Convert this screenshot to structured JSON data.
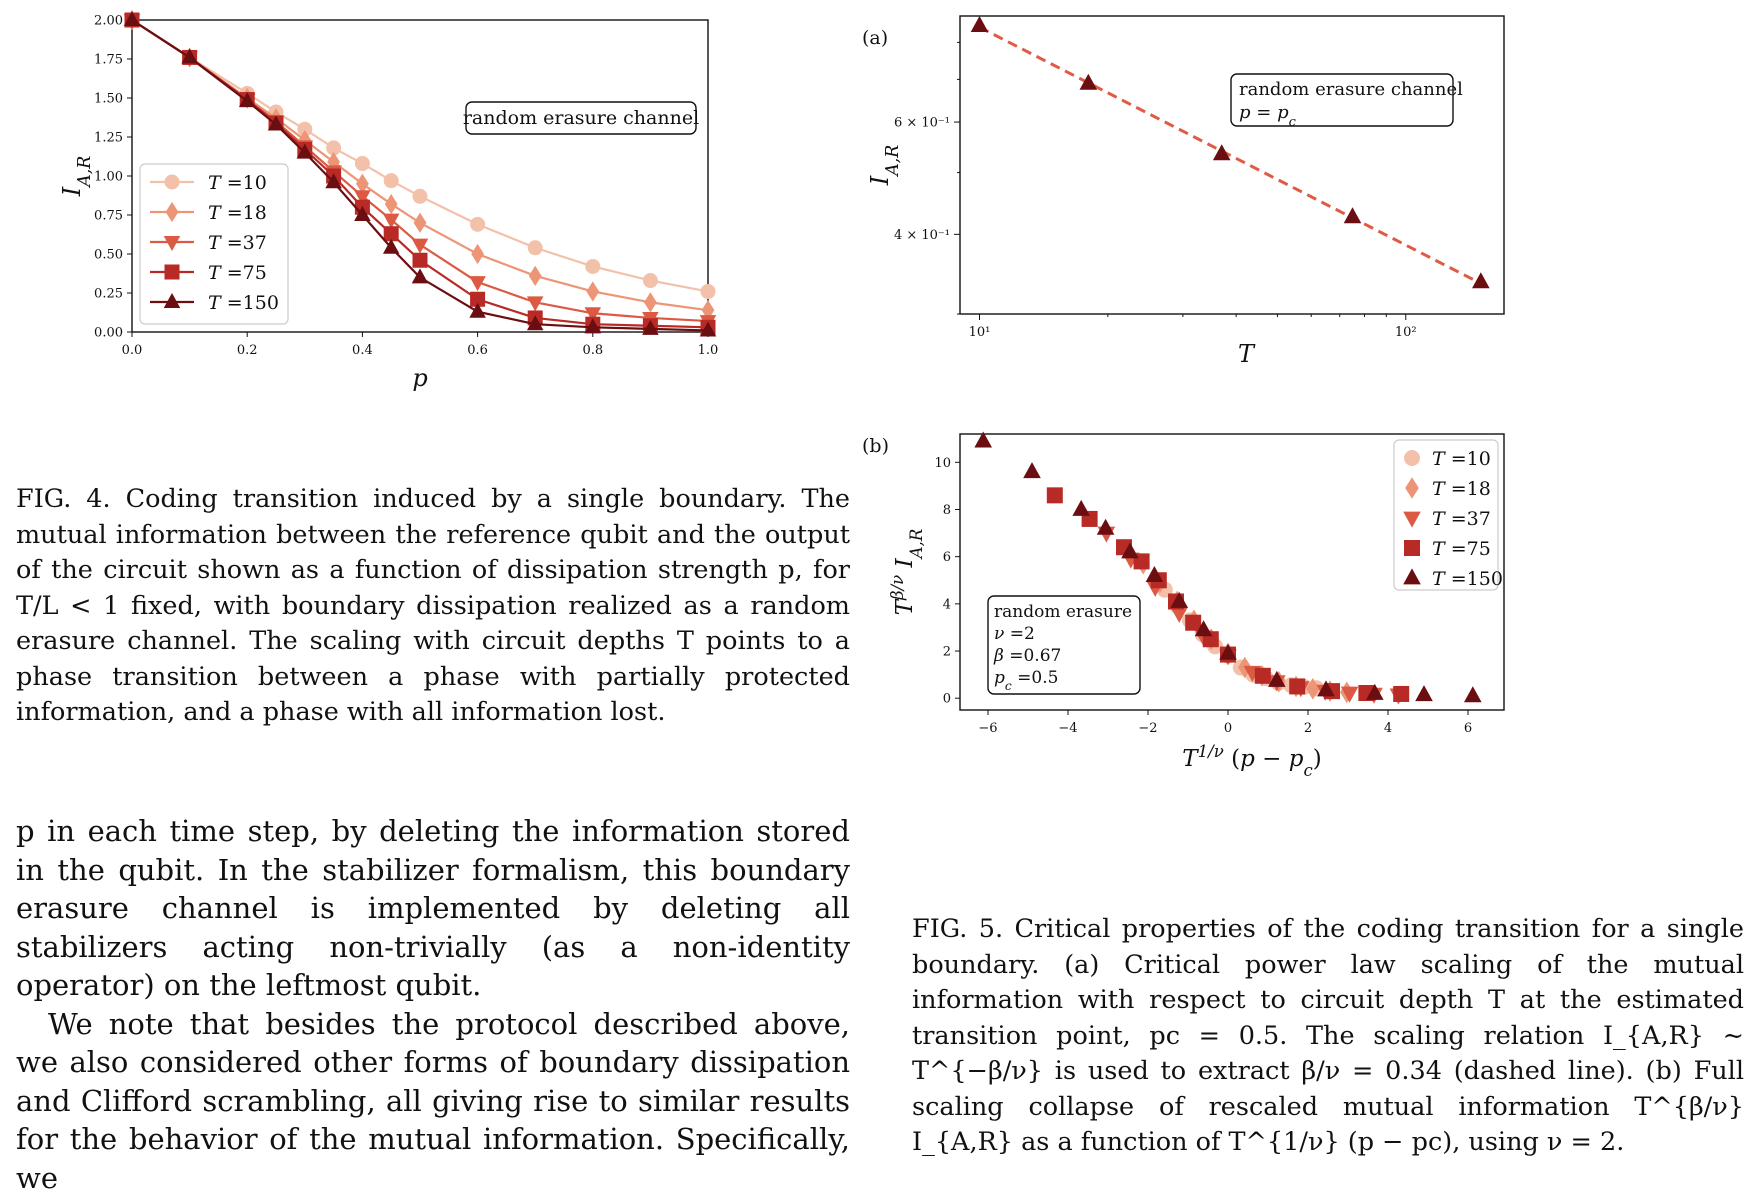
{
  "fig4": {
    "chart_data": {
      "type": "line",
      "xlabel": "p",
      "ylabel": "I_{A,R}",
      "xlim": [
        0.0,
        1.0
      ],
      "ylim": [
        0.0,
        2.0
      ],
      "xticks": [
        "0.0",
        "0.2",
        "0.4",
        "0.6",
        "0.8",
        "1.0"
      ],
      "yticks": [
        "0.00",
        "0.25",
        "0.50",
        "0.75",
        "1.00",
        "1.25",
        "1.50",
        "1.75",
        "2.00"
      ],
      "annotation": "random erasure channel",
      "legend_position": "middle-left",
      "x": [
        0.0,
        0.1,
        0.2,
        0.25,
        0.3,
        0.35,
        0.4,
        0.45,
        0.5,
        0.6,
        0.7,
        0.8,
        0.9,
        1.0
      ],
      "series": [
        {
          "name": "T =10",
          "marker": "circle",
          "color": "#f3c1aa",
          "values": [
            2.0,
            1.76,
            1.53,
            1.41,
            1.3,
            1.18,
            1.08,
            0.97,
            0.87,
            0.69,
            0.54,
            0.42,
            0.33,
            0.26
          ]
        },
        {
          "name": "T =18",
          "marker": "diamond",
          "color": "#ec9577",
          "values": [
            2.0,
            1.76,
            1.5,
            1.37,
            1.23,
            1.09,
            0.95,
            0.82,
            0.7,
            0.5,
            0.36,
            0.26,
            0.19,
            0.14
          ]
        },
        {
          "name": "T =37",
          "marker": "triangle-down",
          "color": "#dc5a44",
          "values": [
            2.0,
            1.76,
            1.49,
            1.35,
            1.19,
            1.03,
            0.87,
            0.72,
            0.56,
            0.32,
            0.19,
            0.12,
            0.09,
            0.07
          ]
        },
        {
          "name": "T =75",
          "marker": "square",
          "color": "#b82a26",
          "values": [
            2.0,
            1.76,
            1.49,
            1.34,
            1.17,
            1.0,
            0.8,
            0.63,
            0.46,
            0.21,
            0.09,
            0.05,
            0.04,
            0.03
          ]
        },
        {
          "name": "T =150",
          "marker": "triangle-up",
          "color": "#6b0e12",
          "values": [
            2.0,
            1.76,
            1.48,
            1.33,
            1.15,
            0.96,
            0.75,
            0.54,
            0.35,
            0.13,
            0.05,
            0.03,
            0.02,
            0.01
          ]
        }
      ]
    }
  },
  "fig5a": {
    "panel_label": "(a)",
    "chart_data": {
      "type": "scatter",
      "scale": "log-log",
      "xlabel": "T",
      "ylabel": "I_{A,R}",
      "xlim": [
        9,
        170
      ],
      "ylim": [
        0.3,
        0.88
      ],
      "xticks": [
        {
          "value": 10,
          "label": "10¹"
        },
        {
          "value": 100,
          "label": "10²"
        }
      ],
      "yticks": [
        {
          "value": 0.4,
          "label": "4 × 10⁻¹"
        },
        {
          "value": 0.6,
          "label": "6 × 10⁻¹"
        }
      ],
      "annotation": [
        "random erasure channel",
        "p = pc"
      ],
      "points": [
        [
          10,
          0.85
        ],
        [
          18,
          0.69
        ],
        [
          37,
          0.535
        ],
        [
          75,
          0.426
        ],
        [
          150,
          0.337
        ]
      ],
      "fit_line": {
        "style": "dashed",
        "color": "#e05a44",
        "from": [
          10,
          0.845
        ],
        "to": [
          150,
          0.335
        ]
      },
      "marker": "triangle-up",
      "color": "#6b0e12"
    }
  },
  "fig5b": {
    "panel_label": "(b)",
    "chart_data": {
      "type": "scatter",
      "xlabel": "T^{1/ν} (p − pc)",
      "ylabel": "T^{β/ν} I_{A,R}",
      "xlim": [
        -6.7,
        6.9
      ],
      "ylim": [
        -0.5,
        11.2
      ],
      "xticks": [
        "−6",
        "−4",
        "−2",
        "0",
        "2",
        "4",
        "6"
      ],
      "yticks": [
        "0",
        "2",
        "4",
        "6",
        "8",
        "10"
      ],
      "annotation": [
        "random erasure",
        "ν =2",
        "β =0.67",
        "pc =0.5"
      ],
      "legend_position": "top-right",
      "series": [
        {
          "name": "T =10",
          "marker": "circle",
          "color": "#f3c1aa",
          "points": [
            [
              -1.58,
              4.6
            ],
            [
              -1.26,
              3.9
            ],
            [
              -0.95,
              3.3
            ],
            [
              -0.63,
              2.7
            ],
            [
              -0.32,
              2.2
            ],
            [
              0,
              1.8
            ],
            [
              0.32,
              1.3
            ],
            [
              0.63,
              1.0
            ],
            [
              0.95,
              0.85
            ],
            [
              1.26,
              0.65
            ],
            [
              1.58,
              0.55
            ],
            [
              1.9,
              0.48
            ],
            [
              2.21,
              0.42
            ]
          ]
        },
        {
          "name": "T =18",
          "marker": "diamond",
          "color": "#ec9577",
          "points": [
            [
              -2.12,
              5.7
            ],
            [
              -1.7,
              4.9
            ],
            [
              -1.27,
              4.1
            ],
            [
              -0.85,
              3.3
            ],
            [
              -0.42,
              2.5
            ],
            [
              0,
              1.9
            ],
            [
              0.42,
              1.3
            ],
            [
              0.85,
              0.95
            ],
            [
              1.27,
              0.7
            ],
            [
              1.7,
              0.5
            ],
            [
              2.12,
              0.4
            ],
            [
              2.55,
              0.3
            ],
            [
              2.97,
              0.25
            ]
          ]
        },
        {
          "name": "T =37",
          "marker": "triangle-down",
          "color": "#dc5a44",
          "points": [
            [
              -3.04,
              7.0
            ],
            [
              -2.43,
              5.9
            ],
            [
              -1.82,
              4.7
            ],
            [
              -1.22,
              3.6
            ],
            [
              -0.61,
              2.6
            ],
            [
              0,
              1.8
            ],
            [
              0.61,
              1.1
            ],
            [
              1.22,
              0.7
            ],
            [
              1.82,
              0.45
            ],
            [
              2.43,
              0.3
            ],
            [
              3.04,
              0.22
            ],
            [
              3.65,
              0.17
            ],
            [
              4.26,
              0.14
            ]
          ]
        },
        {
          "name": "T =75",
          "marker": "square",
          "color": "#b82a26",
          "points": [
            [
              -4.33,
              8.6
            ],
            [
              -3.46,
              7.6
            ],
            [
              -2.6,
              6.4
            ],
            [
              -2.16,
              5.8
            ],
            [
              -1.73,
              5.0
            ],
            [
              -1.3,
              4.1
            ],
            [
              -0.87,
              3.2
            ],
            [
              -0.43,
              2.5
            ],
            [
              0,
              1.85
            ],
            [
              0.87,
              0.95
            ],
            [
              1.73,
              0.5
            ],
            [
              2.6,
              0.3
            ],
            [
              3.46,
              0.22
            ],
            [
              4.33,
              0.18
            ]
          ]
        },
        {
          "name": "T =150",
          "marker": "triangle-up",
          "color": "#6b0e12",
          "points": [
            [
              -6.12,
              10.9
            ],
            [
              -4.9,
              9.6
            ],
            [
              -3.67,
              8.0
            ],
            [
              -3.06,
              7.2
            ],
            [
              -2.45,
              6.2
            ],
            [
              -1.84,
              5.2
            ],
            [
              -1.22,
              4.1
            ],
            [
              -0.61,
              2.9
            ],
            [
              0,
              1.9
            ],
            [
              1.22,
              0.75
            ],
            [
              2.45,
              0.35
            ],
            [
              3.67,
              0.2
            ],
            [
              4.9,
              0.15
            ],
            [
              6.12,
              0.1
            ]
          ]
        }
      ]
    }
  },
  "captions": {
    "fig4": "FIG. 4. Coding transition induced by a single boundary. The mutual information between the reference qubit and the output of the circuit shown as a function of dissipation strength p, for T/L < 1 fixed, with boundary dissipation realized as a random erasure channel. The scaling with circuit depths T points to a phase transition between a phase with partially protected information, and a phase with all information lost.",
    "fig5": "FIG. 5. Critical properties of the coding transition for a single boundary. (a) Critical power law scaling of the mutual information with respect to circuit depth T at the estimated transition point, pc = 0.5. The scaling relation I_{A,R} ∼ T^{−β/ν} is used to extract β/ν = 0.34 (dashed line). (b) Full scaling collapse of rescaled mutual information T^{β/ν} I_{A,R} as a function of T^{1/ν} (p − pc), using ν = 2."
  },
  "body": {
    "para1": "p in each time step, by deleting the information stored in the qubit. In the stabilizer formalism, this boundary erasure channel is implemented by deleting all stabilizers acting non-trivially (as a non-identity operator) on the leftmost qubit.",
    "para2": "We note that besides the protocol described above, we also considered other forms of boundary dissipation and Clifford scrambling, all giving rise to similar results for the behavior of the mutual information. Specifically, we"
  }
}
